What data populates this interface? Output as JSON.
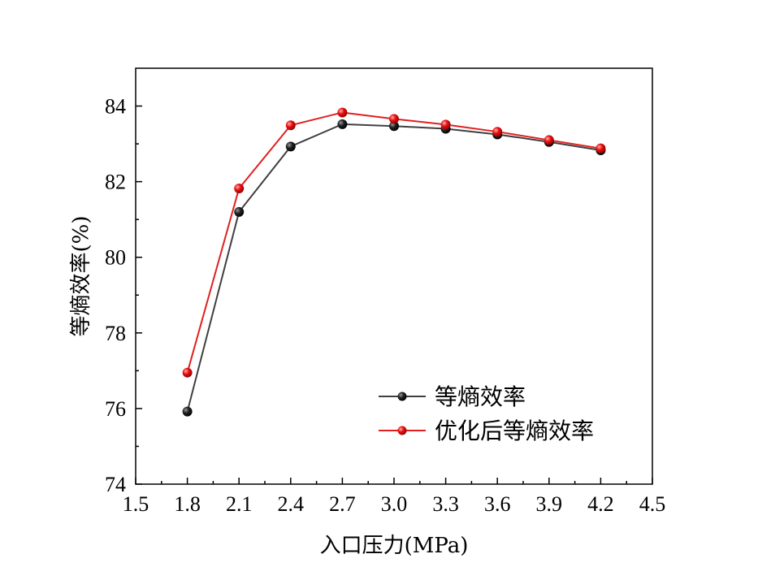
{
  "chart_data": {
    "type": "line",
    "title": "",
    "xlabel": "入口压力(MPa)",
    "ylabel": "等熵效率(%)",
    "xlim": [
      1.5,
      4.5
    ],
    "ylim": [
      74,
      85
    ],
    "xticks": [
      "1.5",
      "1.8",
      "2.1",
      "2.4",
      "2.7",
      "3.0",
      "3.3",
      "3.6",
      "3.9",
      "4.2",
      "4.5"
    ],
    "yticks": [
      "74",
      "76",
      "78",
      "80",
      "82",
      "84"
    ],
    "grid": false,
    "legend_position": "bottom-right",
    "x": [
      1.8,
      2.1,
      2.4,
      2.7,
      3.0,
      3.3,
      3.6,
      3.9,
      4.2
    ],
    "series": [
      {
        "name": "等熵效率",
        "color": "#404040",
        "marker_color": "#000000",
        "values": [
          75.92,
          81.2,
          82.93,
          83.52,
          83.47,
          83.4,
          83.25,
          83.05,
          82.83
        ]
      },
      {
        "name": "优化后等熵效率",
        "color": "#e02020",
        "marker_color": "#e00000",
        "values": [
          76.95,
          81.82,
          83.49,
          83.83,
          83.66,
          83.51,
          83.32,
          83.1,
          82.88
        ]
      }
    ]
  }
}
